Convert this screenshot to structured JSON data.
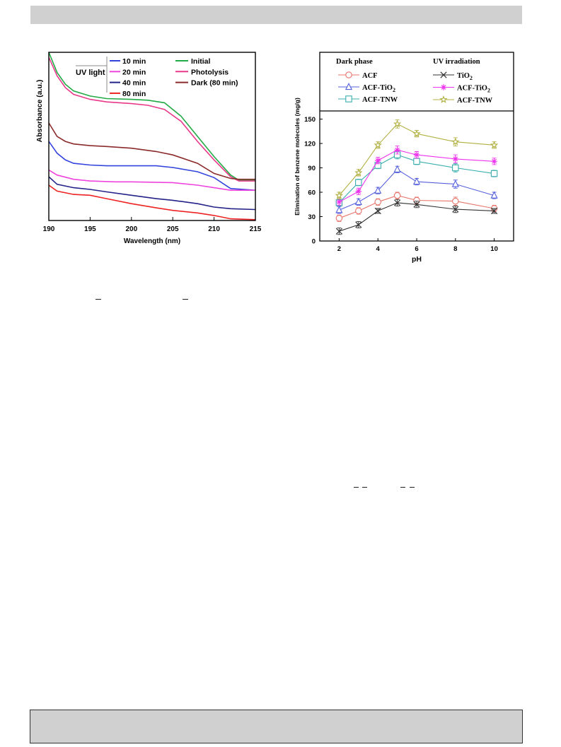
{
  "chart_data": [
    {
      "type": "line",
      "xlabel": "Wavelength (nm)",
      "ylabel": "Absorbance (a.u.)",
      "xlim": [
        190,
        215
      ],
      "ylim": [
        0,
        1
      ],
      "xticks": [
        190,
        195,
        200,
        205,
        210,
        215
      ],
      "legend_group_label": "UV light",
      "series": [
        {
          "name": "10 min",
          "color": "#3344dd",
          "x": [
            190,
            191,
            192,
            193,
            195,
            197,
            200,
            203,
            205,
            208,
            210,
            212,
            215
          ],
          "y": [
            0.47,
            0.4,
            0.36,
            0.34,
            0.33,
            0.325,
            0.325,
            0.325,
            0.315,
            0.29,
            0.255,
            0.19,
            0.18
          ]
        },
        {
          "name": "20 min",
          "color": "#ee44dd",
          "x": [
            190,
            191,
            193,
            195,
            198,
            200,
            205,
            208,
            210,
            212,
            215
          ],
          "y": [
            0.3,
            0.27,
            0.245,
            0.235,
            0.23,
            0.23,
            0.225,
            0.21,
            0.195,
            0.18,
            0.18
          ]
        },
        {
          "name": "40 min",
          "color": "#222288",
          "x": [
            190,
            191,
            193,
            195,
            197,
            200,
            203,
            205,
            208,
            210,
            212,
            215
          ],
          "y": [
            0.26,
            0.215,
            0.195,
            0.185,
            0.17,
            0.15,
            0.13,
            0.12,
            0.1,
            0.08,
            0.07,
            0.065
          ]
        },
        {
          "name": "80 min",
          "color": "#ee2222",
          "x": [
            190,
            191,
            193,
            195,
            197,
            200,
            203,
            205,
            208,
            210,
            212,
            215
          ],
          "y": [
            0.21,
            0.175,
            0.155,
            0.15,
            0.13,
            0.1,
            0.075,
            0.06,
            0.045,
            0.03,
            0.01,
            0.005
          ]
        },
        {
          "name": "Initial",
          "color": "#22aa44",
          "x": [
            190,
            191,
            192,
            193,
            195,
            197,
            200,
            202,
            204,
            206,
            208,
            210,
            212,
            213,
            215
          ],
          "y": [
            1.0,
            0.88,
            0.81,
            0.77,
            0.74,
            0.725,
            0.72,
            0.715,
            0.7,
            0.62,
            0.5,
            0.38,
            0.27,
            0.24,
            0.24
          ]
        },
        {
          "name": "Photolysis",
          "color": "#e8388a",
          "x": [
            190,
            191,
            192,
            193,
            195,
            197,
            200,
            202,
            204,
            206,
            208,
            210,
            212,
            213,
            215
          ],
          "y": [
            0.97,
            0.86,
            0.79,
            0.75,
            0.72,
            0.705,
            0.695,
            0.685,
            0.66,
            0.59,
            0.47,
            0.36,
            0.26,
            0.235,
            0.235
          ]
        },
        {
          "name": "Dark (80 min)",
          "color": "#8b2a2a",
          "x": [
            190,
            191,
            192,
            193,
            195,
            197,
            200,
            203,
            205,
            208,
            210,
            212,
            213,
            215
          ],
          "y": [
            0.58,
            0.5,
            0.47,
            0.455,
            0.445,
            0.44,
            0.43,
            0.41,
            0.39,
            0.34,
            0.28,
            0.25,
            0.245,
            0.245
          ]
        }
      ]
    },
    {
      "type": "line",
      "xlabel": "pH",
      "ylabel": "Elimination of benzene molecules (mg/g)",
      "xlim": [
        1,
        11
      ],
      "ylim": [
        0,
        160
      ],
      "xticks": [
        2,
        4,
        6,
        8,
        10
      ],
      "yticks": [
        0,
        30,
        60,
        90,
        120,
        150
      ],
      "x": [
        2,
        3,
        4,
        5,
        6,
        8,
        10
      ],
      "legend_headers": {
        "dark": "Dark phase",
        "uv": "UV irradiation"
      },
      "series": [
        {
          "name": "ACF",
          "group": "dark",
          "marker": "circle",
          "color": "#e8746a",
          "values": [
            28,
            37,
            48,
            56,
            50,
            49,
            40
          ],
          "errors": [
            4,
            4,
            4,
            4,
            4,
            5,
            4
          ]
        },
        {
          "name": "ACF-TiO",
          "sub": "2",
          "group": "dark",
          "marker": "triangle",
          "color": "#5560dd",
          "values": [
            38,
            48,
            62,
            88,
            73,
            70,
            56
          ],
          "errors": [
            4,
            4,
            4,
            4,
            4,
            5,
            4
          ]
        },
        {
          "name": "ACF-TNW",
          "group": "dark",
          "marker": "square",
          "color": "#3aaeae",
          "values": [
            47,
            72,
            93,
            106,
            98,
            90,
            83
          ],
          "errors": [
            4,
            4,
            4,
            5,
            4,
            5,
            4
          ]
        },
        {
          "name": "TiO",
          "sub": "2",
          "group": "uv",
          "marker": "x",
          "color": "#333333",
          "values": [
            12,
            20,
            37,
            47,
            45,
            39,
            37
          ],
          "errors": [
            4,
            4,
            3,
            4,
            4,
            4,
            3
          ]
        },
        {
          "name": "ACF-TiO",
          "sub": "2",
          "group": "uv",
          "marker": "star",
          "color": "#ee33ee",
          "values": [
            48,
            61,
            99,
            112,
            106,
            101,
            98
          ],
          "errors": [
            4,
            4,
            4,
            5,
            4,
            5,
            4
          ]
        },
        {
          "name": "ACF-TNW",
          "group": "uv",
          "marker": "star5",
          "color": "#b0b040",
          "values": [
            56,
            84,
            118,
            144,
            132,
            122,
            118
          ],
          "errors": [
            4,
            4,
            4,
            5,
            4,
            5,
            4
          ]
        }
      ]
    }
  ]
}
